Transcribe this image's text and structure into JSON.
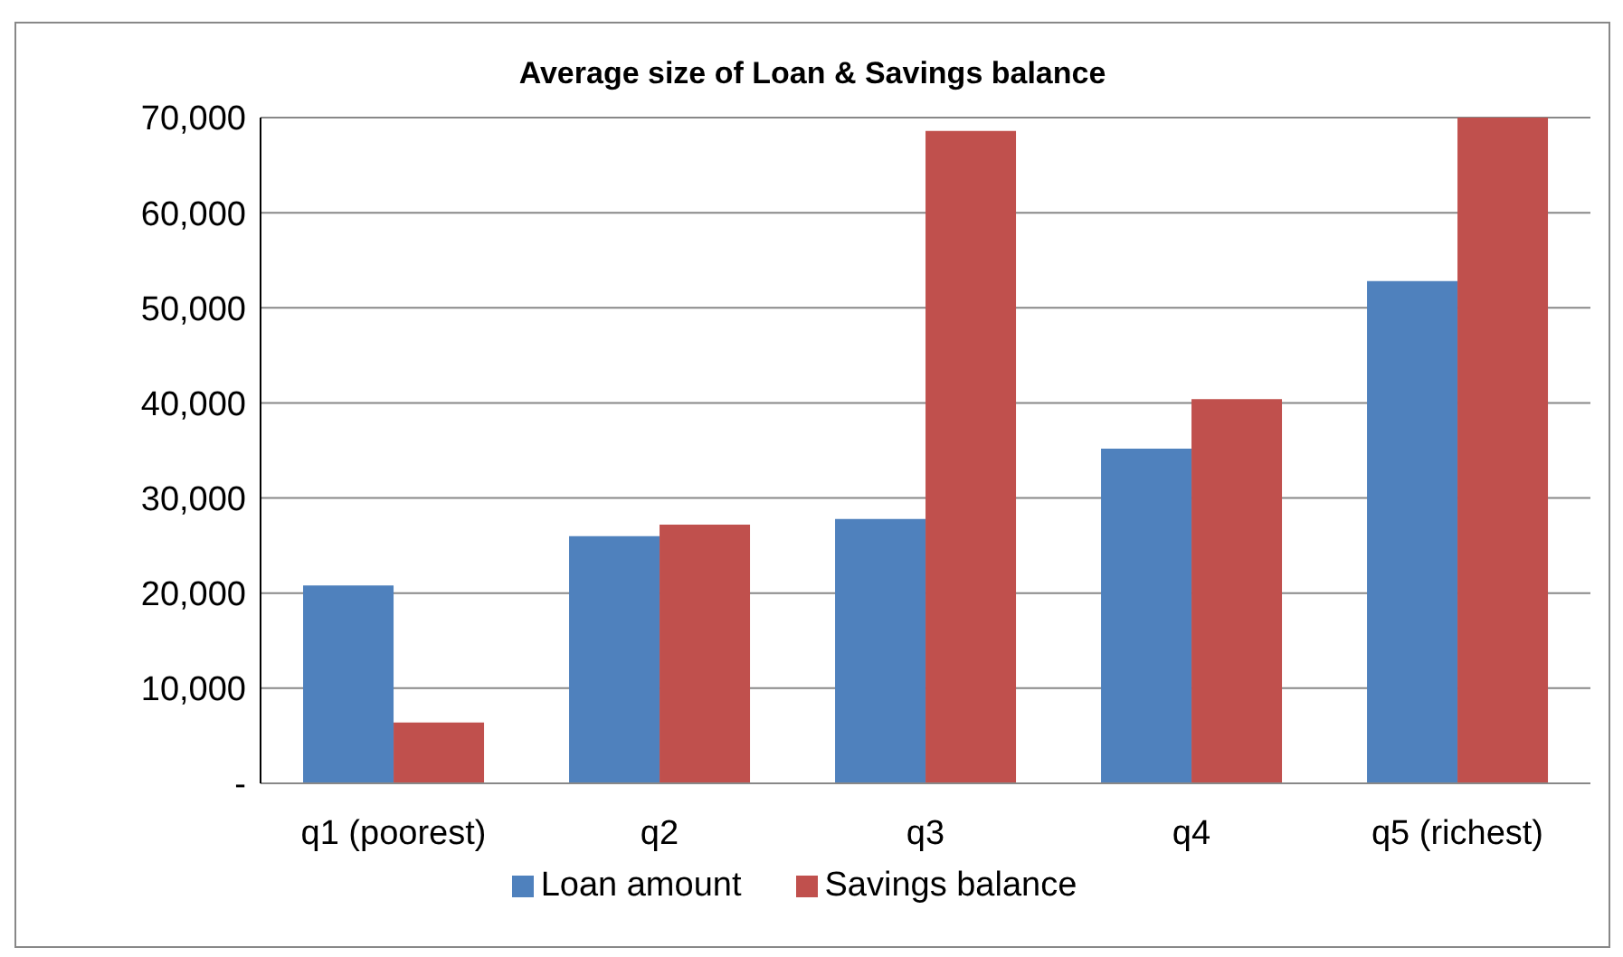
{
  "chart_data": {
    "type": "bar",
    "title": "Average size of Loan & Savings balance",
    "categories": [
      "q1 (poorest)",
      "q2",
      "q3",
      "q4",
      "q5 (richest)"
    ],
    "series": [
      {
        "name": "Loan amount",
        "color": "#4f81bd",
        "values": [
          20800,
          26000,
          27800,
          35200,
          52800
        ]
      },
      {
        "name": "Savings balance",
        "color": "#c0504d",
        "values": [
          6400,
          27200,
          68600,
          40400,
          70000
        ]
      }
    ],
    "ylim": [
      0,
      70000
    ],
    "yticks": [
      {
        "value": 0,
        "label": "-"
      },
      {
        "value": 10000,
        "label": "10,000"
      },
      {
        "value": 20000,
        "label": "20,000"
      },
      {
        "value": 30000,
        "label": "30,000"
      },
      {
        "value": 40000,
        "label": "40,000"
      },
      {
        "value": 50000,
        "label": "50,000"
      },
      {
        "value": 60000,
        "label": "60,000"
      },
      {
        "value": 70000,
        "label": "70,000"
      }
    ],
    "grid": "y",
    "legend": "bottom"
  }
}
